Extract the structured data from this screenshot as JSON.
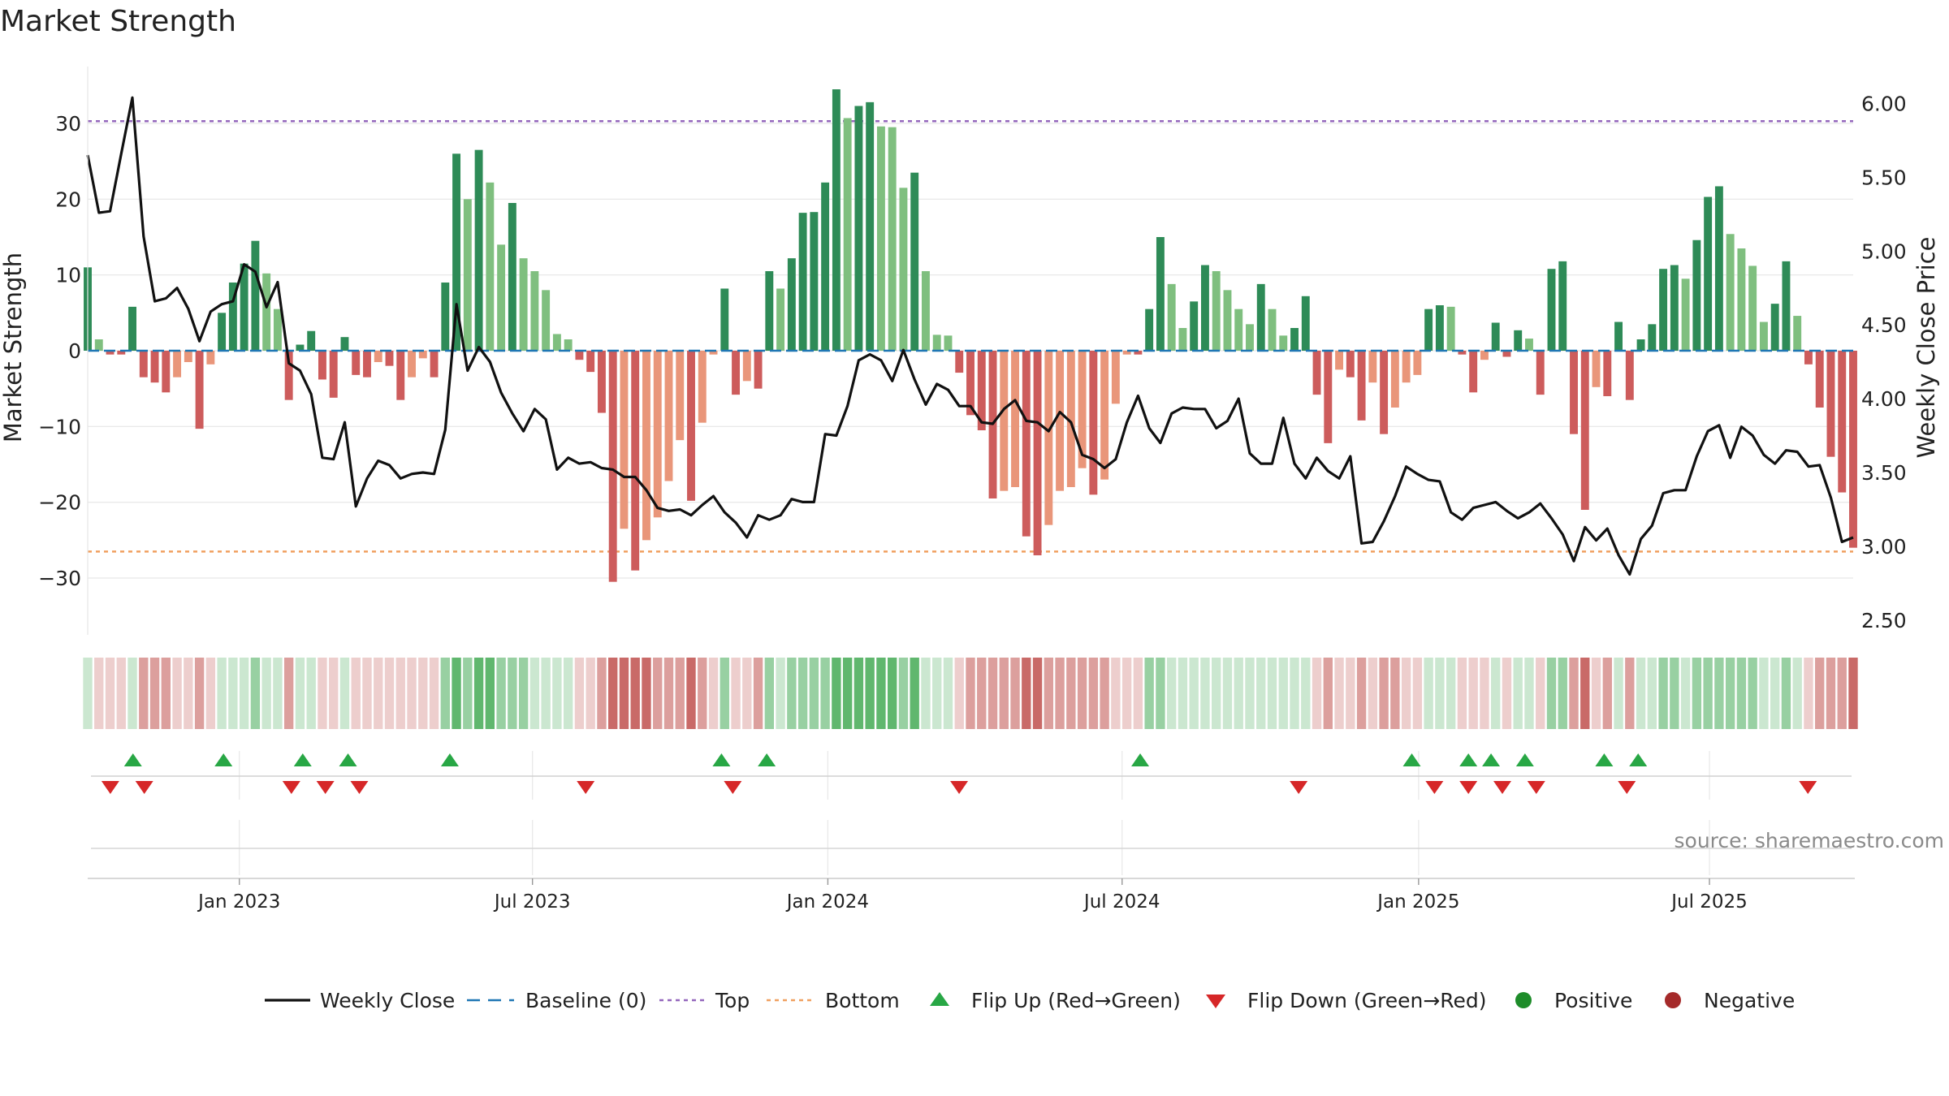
{
  "chart_data": {
    "type": "bar+line",
    "title": "Market Strength",
    "ylabel_left": "Market Strength",
    "ylabel_right": "Weekly Close Price",
    "ylim_left": [
      -37.5,
      37.5
    ],
    "ylim_right": [
      2.4,
      6.25
    ],
    "yticks_left": [
      30,
      20,
      10,
      0,
      -10,
      -20,
      -30
    ],
    "ytick_labels_left": [
      "30",
      "20",
      "10",
      "0",
      "−10",
      "−20",
      "−30"
    ],
    "yticks_right": [
      6.0,
      5.5,
      5.0,
      4.5,
      4.0,
      3.5,
      3.0,
      2.5
    ],
    "ytick_labels_right": [
      "6.00",
      "5.50",
      "5.00",
      "4.50",
      "4.00",
      "3.50",
      "3.00",
      "2.50"
    ],
    "x_start_week": 0,
    "x_end_week": 156,
    "x_ticks": [
      {
        "week": 13.4,
        "label": "Jan 2023"
      },
      {
        "week": 39.3,
        "label": "Jul 2023"
      },
      {
        "week": 65.4,
        "label": "Jan 2024"
      },
      {
        "week": 91.4,
        "label": "Jul 2024"
      },
      {
        "week": 117.6,
        "label": "Jan 2025"
      },
      {
        "week": 143.3,
        "label": "Jul 2025"
      }
    ],
    "top_line": 30.3,
    "bottom_line": -26.5,
    "strength": [
      11,
      1.5,
      -0.5,
      -0.5,
      5.8,
      -3.5,
      -4.2,
      -5.5,
      -3.5,
      -1.5,
      -10.3,
      -1.8,
      5,
      9,
      11.5,
      14.5,
      10.2,
      5.5,
      -6.5,
      0.8,
      2.6,
      -3.8,
      -6.2,
      1.8,
      -3.2,
      -3.5,
      -1.5,
      -2,
      -6.5,
      -3.5,
      -1,
      -3.5,
      9,
      26,
      20,
      26.5,
      22.2,
      14,
      19.5,
      12.2,
      10.5,
      8,
      2.2,
      1.5,
      -1.2,
      -2.8,
      -8.2,
      -30.5,
      -23.5,
      -29,
      -25,
      -22,
      -17.2,
      -11.8,
      -19.8,
      -9.5,
      -0.5,
      8.2,
      -5.8,
      -4,
      -5,
      10.5,
      8.2,
      12.2,
      18.2,
      18.3,
      22.2,
      34.5,
      30.7,
      32.3,
      32.8,
      29.6,
      29.5,
      21.5,
      23.5,
      10.5,
      2.1,
      2,
      -2.9,
      -8.5,
      -10.5,
      -19.5,
      -18.5,
      -18,
      -24.5,
      -27,
      -23,
      -18.5,
      -18,
      -15.5,
      -19,
      -17,
      -7,
      -0.5,
      -0.5,
      5.5,
      15,
      8.8,
      3,
      6.5,
      11.3,
      10.5,
      8,
      5.5,
      3.5,
      8.8,
      5.5,
      2,
      3,
      7.2,
      -5.8,
      -12.2,
      -2.5,
      -3.5,
      -9.2,
      -4.2,
      -11,
      -7.5,
      -4.2,
      -3.2,
      5.5,
      6,
      5.8,
      -0.5,
      -5.5,
      -1.2,
      3.7,
      -0.8,
      2.7,
      1.6,
      -5.8,
      10.8,
      11.8,
      -11,
      -21,
      -4.8,
      -6,
      3.8,
      -6.5,
      1.5,
      3.5,
      10.8,
      11.3,
      9.5,
      14.6,
      20.3,
      21.7,
      15.4,
      13.5,
      11.2,
      3.8,
      6.2,
      11.8,
      4.6,
      -1.8,
      -7.5,
      -14,
      -18.7,
      -26
    ],
    "weekly_close": [
      5.65,
      5.26,
      5.27,
      5.66,
      6.04,
      5.1,
      4.66,
      4.68,
      4.75,
      4.61,
      4.39,
      4.59,
      4.64,
      4.66,
      4.91,
      4.86,
      4.62,
      4.79,
      4.24,
      4.19,
      4.03,
      3.6,
      3.59,
      3.84,
      3.27,
      3.46,
      3.58,
      3.55,
      3.46,
      3.49,
      3.5,
      3.49,
      3.79,
      4.64,
      4.19,
      4.35,
      4.25,
      4.04,
      3.9,
      3.78,
      3.93,
      3.86,
      3.52,
      3.6,
      3.56,
      3.57,
      3.53,
      3.52,
      3.47,
      3.47,
      3.38,
      3.26,
      3.24,
      3.25,
      3.21,
      3.28,
      3.34,
      3.23,
      3.16,
      3.06,
      3.21,
      3.18,
      3.21,
      3.32,
      3.3,
      3.3,
      3.76,
      3.75,
      3.95,
      4.26,
      4.3,
      4.26,
      4.12,
      4.33,
      4.13,
      3.96,
      4.1,
      4.06,
      3.95,
      3.95,
      3.84,
      3.83,
      3.93,
      3.99,
      3.85,
      3.84,
      3.78,
      3.91,
      3.84,
      3.62,
      3.59,
      3.53,
      3.59,
      3.84,
      4.02,
      3.8,
      3.7,
      3.9,
      3.94,
      3.93,
      3.93,
      3.8,
      3.85,
      4.0,
      3.63,
      3.56,
      3.56,
      3.87,
      3.56,
      3.46,
      3.6,
      3.51,
      3.46,
      3.61,
      3.02,
      3.03,
      3.17,
      3.34,
      3.54,
      3.49,
      3.45,
      3.44,
      3.23,
      3.18,
      3.26,
      3.28,
      3.3,
      3.24,
      3.19,
      3.23,
      3.29,
      3.19,
      3.08,
      2.9,
      3.13,
      3.04,
      3.12,
      2.94,
      2.81,
      3.05,
      3.14,
      3.36,
      3.38,
      3.38,
      3.61,
      3.78,
      3.82,
      3.6,
      3.81,
      3.75,
      3.62,
      3.56,
      3.65,
      3.64,
      3.54,
      3.55,
      3.33,
      3.03,
      3.06
    ],
    "state_strip": [
      1,
      -1,
      -1,
      -1,
      1,
      -2,
      -2,
      -2,
      -1,
      -1,
      -2,
      -1,
      1,
      1,
      1,
      2,
      1,
      1,
      -2,
      1,
      1,
      -1,
      -1,
      1,
      -1,
      -1,
      -1,
      -1,
      -1,
      -1,
      -1,
      -1,
      2,
      3,
      2,
      3,
      3,
      2,
      2,
      2,
      1,
      1,
      1,
      1,
      -1,
      -1,
      -2,
      -3,
      -3,
      -3,
      -3,
      -2,
      -2,
      -2,
      -3,
      -2,
      -1,
      2,
      -1,
      -1,
      -2,
      2,
      1,
      2,
      2,
      2,
      2,
      3,
      3,
      3,
      3,
      3,
      3,
      2,
      3,
      1,
      1,
      1,
      -1,
      -2,
      -2,
      -2,
      -2,
      -2,
      -3,
      -3,
      -2,
      -2,
      -2,
      -2,
      -2,
      -2,
      -1,
      -1,
      -1,
      2,
      2,
      1,
      1,
      1,
      1,
      1,
      1,
      1,
      1,
      1,
      1,
      1,
      1,
      1,
      -1,
      -2,
      -1,
      -1,
      -2,
      -1,
      -2,
      -2,
      -1,
      -1,
      1,
      1,
      1,
      -1,
      -1,
      -1,
      1,
      -1,
      1,
      1,
      -1,
      2,
      2,
      -2,
      -3,
      -1,
      -2,
      1,
      -2,
      1,
      1,
      2,
      2,
      1,
      2,
      2,
      2,
      2,
      2,
      2,
      1,
      1,
      2,
      1,
      -1,
      -2,
      -2,
      -2,
      -3
    ],
    "flip_up_weeks": [
      4,
      12,
      19,
      23,
      32,
      56,
      60,
      93,
      117,
      122,
      124,
      127,
      134,
      137
    ],
    "flip_down_weeks": [
      2,
      5,
      18,
      21,
      24,
      44,
      57,
      77,
      107,
      119,
      122,
      125,
      128,
      136,
      152
    ],
    "source_text": "source: sharemaestro.com",
    "legend": [
      {
        "key": "weekly_close",
        "label": "Weekly Close"
      },
      {
        "key": "baseline",
        "label": "Baseline (0)"
      },
      {
        "key": "top",
        "label": "Top"
      },
      {
        "key": "bottom",
        "label": "Bottom"
      },
      {
        "key": "flip_up",
        "label": "Flip Up (Red→Green)"
      },
      {
        "key": "flip_down",
        "label": "Flip Down (Green→Red)"
      },
      {
        "key": "positive",
        "label": "Positive"
      },
      {
        "key": "negative",
        "label": "Negative"
      }
    ],
    "colors": {
      "pos_strong": "#2e8b57",
      "pos_weak": "#7fbf7f",
      "neg_strong": "#cd5c5c",
      "neg_weak": "#e9967a",
      "close_line": "#111111",
      "baseline": "#1f77b4",
      "top": "#9467bd",
      "bottom": "#f0a060",
      "flip_up": "#28a745",
      "flip_down": "#d62728",
      "positive_dot": "#1e8c2a",
      "negative_dot": "#a52a2a",
      "strip_green": "#44aa55",
      "strip_red": "#c0504d",
      "grid": "#e6e6e6",
      "source": "#8a8a8a"
    }
  }
}
